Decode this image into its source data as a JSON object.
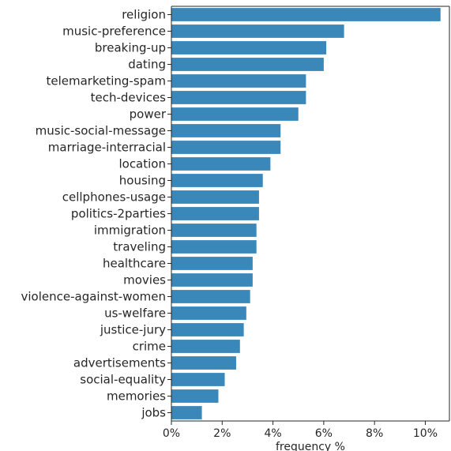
{
  "chart_data": {
    "type": "bar",
    "orientation": "horizontal",
    "title": "",
    "xlabel": "frequency %",
    "ylabel": "",
    "xlim": [
      0,
      10.95
    ],
    "xticks": [
      0,
      2,
      4,
      6,
      8,
      10
    ],
    "xtick_labels": [
      "0%",
      "2%",
      "4%",
      "6%",
      "8%",
      "10%"
    ],
    "bar_color": "#3a87b9",
    "grid": false,
    "categories": [
      "religion",
      "music-preference",
      "breaking-up",
      "dating",
      "telemarketing-spam",
      "tech-devices",
      "power",
      "music-social-message",
      "marriage-interracial",
      "location",
      "housing",
      "cellphones-usage",
      "politics-2parties",
      "immigration",
      "traveling",
      "healthcare",
      "movies",
      "violence-against-women",
      "us-welfare",
      "justice-jury",
      "crime",
      "advertisements",
      "social-equality",
      "memories",
      "jobs"
    ],
    "values": [
      10.6,
      6.8,
      6.1,
      6.0,
      5.3,
      5.3,
      5.0,
      4.3,
      4.3,
      3.9,
      3.6,
      3.45,
      3.45,
      3.35,
      3.35,
      3.2,
      3.2,
      3.1,
      2.95,
      2.85,
      2.7,
      2.55,
      2.1,
      1.85,
      1.2
    ]
  }
}
